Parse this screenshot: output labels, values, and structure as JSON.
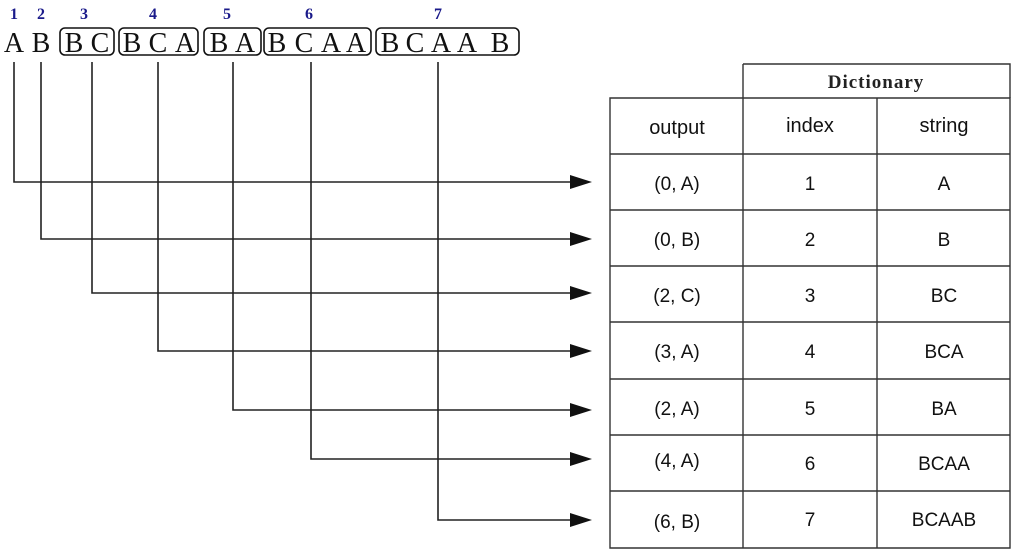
{
  "phrases": [
    {
      "num": "1",
      "chars": [
        "A"
      ],
      "boxed": false
    },
    {
      "num": "2",
      "chars": [
        "B"
      ],
      "boxed": false
    },
    {
      "num": "3",
      "chars": [
        "B",
        "C"
      ],
      "boxed": true
    },
    {
      "num": "4",
      "chars": [
        "B",
        "C",
        "A"
      ],
      "boxed": true
    },
    {
      "num": "5",
      "chars": [
        "B",
        "A"
      ],
      "boxed": true
    },
    {
      "num": "6",
      "chars": [
        "B",
        "C",
        "A",
        "A"
      ],
      "boxed": true
    },
    {
      "num": "7",
      "chars": [
        "B",
        "C",
        "A",
        "A",
        "B"
      ],
      "boxed": true
    }
  ],
  "table": {
    "group_header": "Dictionary",
    "headers": {
      "output": "output",
      "index": "index",
      "string": "string"
    },
    "rows": [
      {
        "output": "(0, A)",
        "index": "1",
        "string": "A"
      },
      {
        "output": "(0, B)",
        "index": "2",
        "string": "B"
      },
      {
        "output": "(2, C)",
        "index": "3",
        "string": "BC"
      },
      {
        "output": "(3, A)",
        "index": "4",
        "string": "BCA"
      },
      {
        "output": "(2, A)",
        "index": "5",
        "string": "BA"
      },
      {
        "output": "(4, A)",
        "index": "6",
        "string": "BCAA"
      },
      {
        "output": "(6, B)",
        "index": "7",
        "string": "BCAAB"
      }
    ]
  }
}
